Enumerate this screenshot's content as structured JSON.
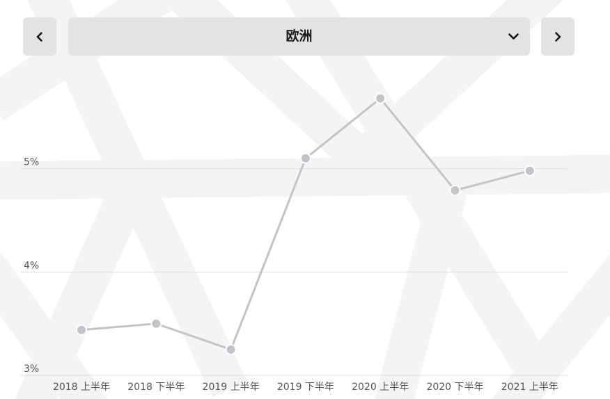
{
  "nav": {
    "region_label": "欧洲",
    "prev_icon": "chevron-left-icon",
    "next_icon": "chevron-right-icon",
    "dropdown_icon": "chevron-down-icon"
  },
  "colors": {
    "line": "#c3c3ca",
    "point": "#c3c3ca",
    "point_stroke": "#ffffff",
    "grid": "#dddddd",
    "button_bg": "#e3e3e3",
    "watermark": "#f3f3f3"
  },
  "chart_data": {
    "type": "line",
    "categories": [
      "2018 上半年",
      "2018 下半年",
      "2019 上半年",
      "2019 下半年",
      "2020 上半年",
      "2020 下半年",
      "2021 上半年"
    ],
    "series": [
      {
        "values": [
          3.44,
          3.5,
          3.25,
          5.1,
          5.68,
          4.79,
          4.98
        ]
      }
    ],
    "y_ticks": [
      {
        "value": 3,
        "label": "3%"
      },
      {
        "value": 4,
        "label": "4%"
      },
      {
        "value": 5,
        "label": "5%"
      }
    ],
    "ylim": [
      3,
      5.65
    ],
    "grid": true,
    "title": "",
    "xlabel": "",
    "ylabel": ""
  }
}
